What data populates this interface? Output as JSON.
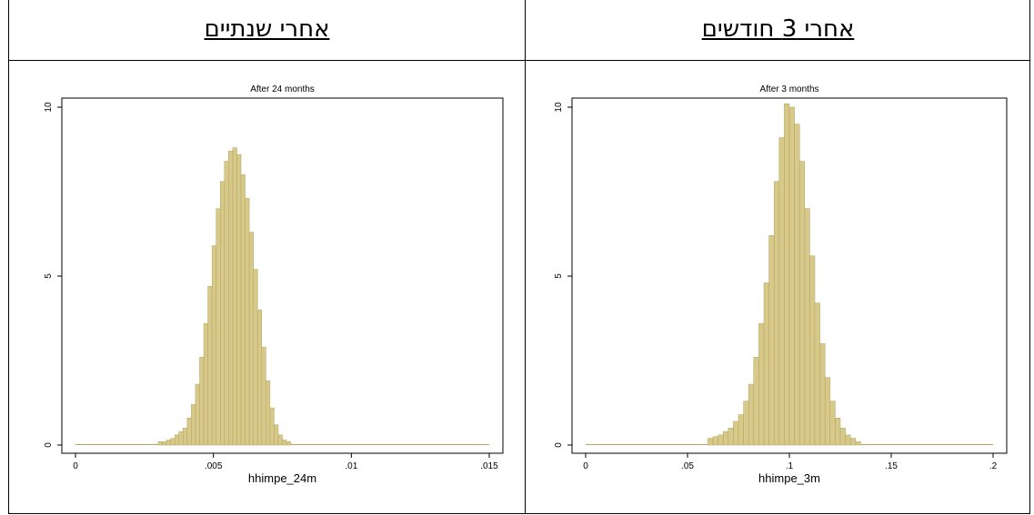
{
  "headers": {
    "left": "אחרי שנתיים",
    "right": "אחרי 3 חודשים"
  },
  "colors": {
    "bar_fill": "#d6c98a",
    "bar_stroke": "#b5a35d",
    "axis": "#000000"
  },
  "chart_data": [
    {
      "type": "bar",
      "title": "After 24 months",
      "xlabel": "hhimpe_24m",
      "ylabel": "",
      "xlim": [
        0,
        0.015
      ],
      "ylim": [
        0,
        10
      ],
      "xticks": [
        0,
        0.005,
        0.01,
        0.015
      ],
      "xtick_labels": [
        "0",
        ".005",
        ".01",
        ".015"
      ],
      "yticks": [
        0,
        5,
        10
      ],
      "ytick_labels": [
        "0",
        "5",
        "10"
      ],
      "bin_width": 0.00015,
      "bin_start": 0.003,
      "values": [
        0.1,
        0.1,
        0.15,
        0.2,
        0.3,
        0.4,
        0.5,
        0.8,
        1.2,
        1.8,
        2.6,
        3.6,
        4.7,
        5.9,
        7.0,
        7.8,
        8.4,
        8.7,
        8.8,
        8.6,
        8.0,
        7.3,
        6.3,
        5.2,
        4.0,
        2.9,
        1.9,
        1.1,
        0.6,
        0.3,
        0.15,
        0.1
      ]
    },
    {
      "type": "bar",
      "title": "After 3 months",
      "xlabel": "hhimpe_3m",
      "ylabel": "",
      "xlim": [
        0,
        0.2
      ],
      "ylim": [
        0,
        10
      ],
      "xticks": [
        0,
        0.05,
        0.1,
        0.15,
        0.2
      ],
      "xtick_labels": [
        "0",
        ".05",
        ".1",
        ".15",
        ".2"
      ],
      "yticks": [
        0,
        5,
        10
      ],
      "ytick_labels": [
        "0",
        "5",
        "10"
      ],
      "bin_width": 0.0025,
      "bin_start": 0.06,
      "values": [
        0.2,
        0.25,
        0.3,
        0.4,
        0.5,
        0.7,
        0.9,
        1.3,
        1.8,
        2.6,
        3.6,
        4.8,
        6.2,
        7.8,
        9.1,
        10.1,
        10.0,
        9.5,
        8.4,
        7.0,
        5.6,
        4.2,
        3.0,
        2.0,
        1.3,
        0.8,
        0.5,
        0.3,
        0.2,
        0.1
      ]
    }
  ]
}
